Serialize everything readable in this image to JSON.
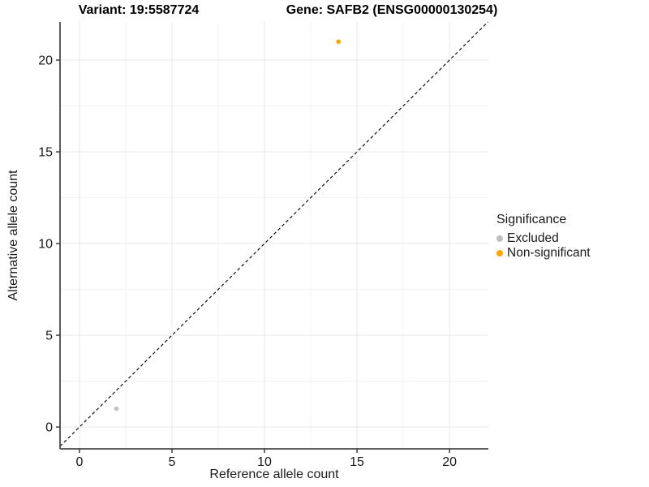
{
  "header": {
    "variant_title": "Variant: 19:5587724",
    "gene_title": "Gene: SAFB2 (ENSG00000130254)"
  },
  "legend": {
    "title": "Significance",
    "items": [
      {
        "label": "Excluded",
        "color": "#bfbfbf"
      },
      {
        "label": "Non-significant",
        "color": "#ffa500"
      }
    ]
  },
  "chart_data": {
    "type": "scatter",
    "title": "",
    "xlabel": "Reference allele count",
    "ylabel": "Alternative allele count",
    "xlim": [
      -1.05,
      22.1
    ],
    "ylim": [
      -1.19,
      22.08
    ],
    "x_ticks": [
      0,
      5,
      10,
      15,
      20
    ],
    "y_ticks": [
      0,
      5,
      10,
      15,
      20
    ],
    "minor_grid_step": 2.5,
    "grid": true,
    "legend_position": "right",
    "series": [
      {
        "name": "Excluded",
        "color": "#c3c3c3",
        "points": [
          {
            "x": 2,
            "y": 1
          }
        ]
      },
      {
        "name": "Non-significant",
        "color": "#ffa500",
        "points": [
          {
            "x": 14,
            "y": 21
          }
        ]
      }
    ],
    "reference_line": {
      "kind": "identity",
      "equation": "y = x",
      "style": "dashed",
      "color": "#111111"
    },
    "style_colors": {
      "axis_line": "#4a4a4a",
      "tick_mark": "#333333",
      "major_grid": "#e7e7e7",
      "minor_grid": "#f3f3f3",
      "panel_background": "#ffffff"
    }
  }
}
